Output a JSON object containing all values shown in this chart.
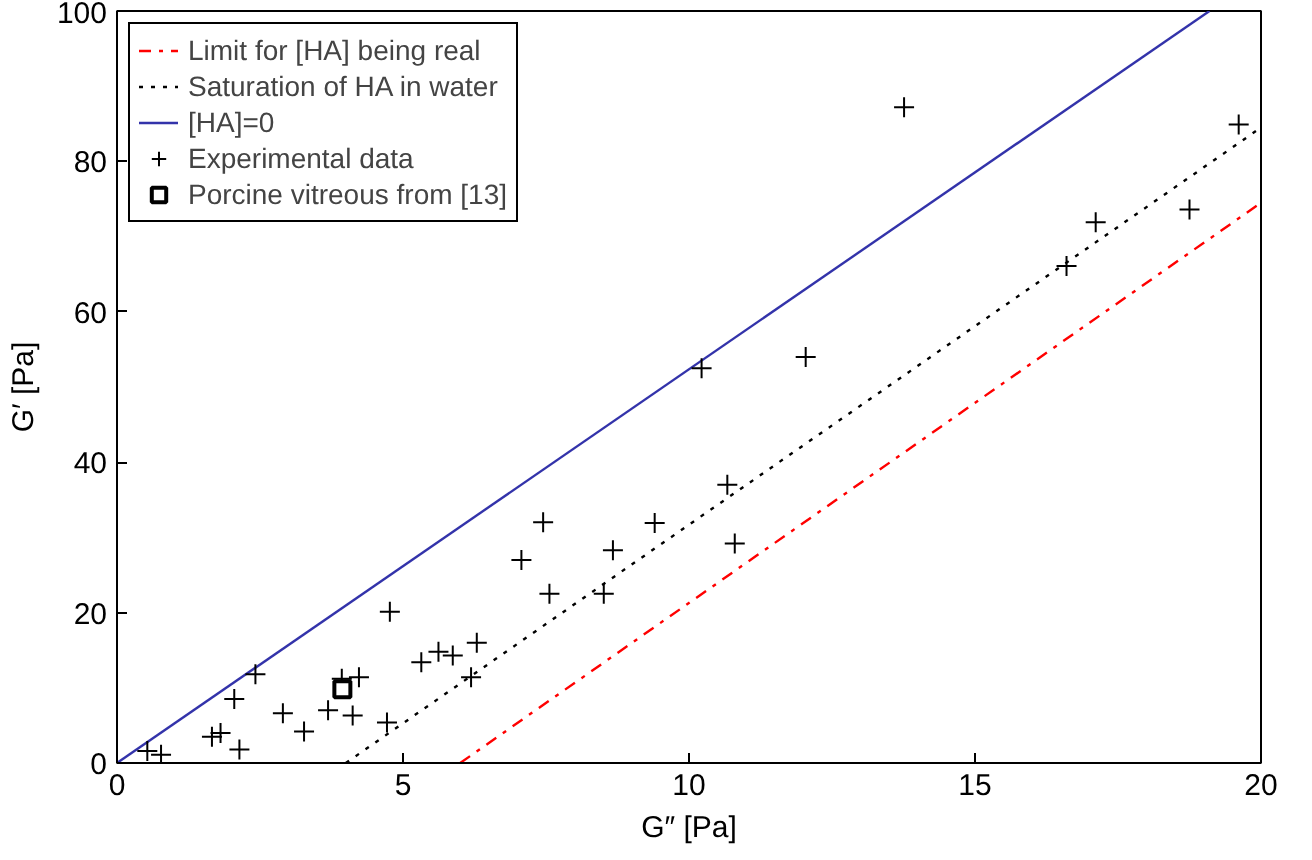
{
  "chart_data": {
    "type": "scatter",
    "xlabel": "G″ [Pa]",
    "ylabel": "G′ [Pa]",
    "xlim": [
      0,
      20
    ],
    "ylim": [
      0,
      100
    ],
    "xticks": [
      0,
      5,
      10,
      15,
      20
    ],
    "yticks": [
      0,
      20,
      40,
      60,
      80,
      100
    ],
    "grid": false,
    "legend": "top left",
    "series": [
      {
        "name": "Limit for [HA] being real",
        "type": "line",
        "color": "#ff0000",
        "line_style": "dashdot",
        "marker": "none",
        "x": [
          6,
          20
        ],
        "values": [
          0,
          74.5
        ]
      },
      {
        "name": "Saturation of HA in water",
        "type": "line",
        "color": "#000000",
        "line_style": "dotted",
        "marker": "none",
        "x": [
          4,
          20
        ],
        "values": [
          0,
          84.5
        ]
      },
      {
        "name": "[HA]=0",
        "type": "line",
        "color": "#3333aa",
        "line_style": "solid",
        "marker": "none",
        "x": [
          0,
          19.1
        ],
        "values": [
          0,
          100
        ]
      },
      {
        "name": "Experimental data",
        "color": "#000000",
        "marker": "cross",
        "x": [
          0.53,
          0.77,
          1.66,
          1.81,
          2.14,
          2.05,
          2.42,
          2.9,
          3.27,
          3.69,
          3.93,
          4.23,
          4.12,
          4.72,
          4.77,
          5.32,
          5.62,
          5.87,
          6.29,
          6.19,
          7.07,
          7.45,
          7.56,
          10.22,
          12.04,
          8.67,
          8.51,
          9.4,
          10.67,
          10.8,
          13.76,
          19.61,
          17.11,
          18.75,
          16.6
        ],
        "values": [
          1.6,
          1.1,
          3.5,
          4.0,
          1.8,
          8.5,
          11.8,
          6.6,
          4.2,
          7.0,
          11.2,
          11.4,
          6.3,
          5.4,
          20.1,
          13.4,
          14.8,
          14.3,
          16.0,
          11.4,
          27.0,
          32.0,
          22.5,
          52.5,
          54.0,
          28.3,
          22.5,
          31.9,
          37.0,
          29.2,
          87.2,
          84.9,
          71.9,
          73.6,
          66.1
        ]
      },
      {
        "name": "Porcine vitreous from [13]",
        "color": "#000000",
        "marker": "square",
        "x": [
          3.94
        ],
        "values": [
          9.8
        ]
      }
    ]
  }
}
